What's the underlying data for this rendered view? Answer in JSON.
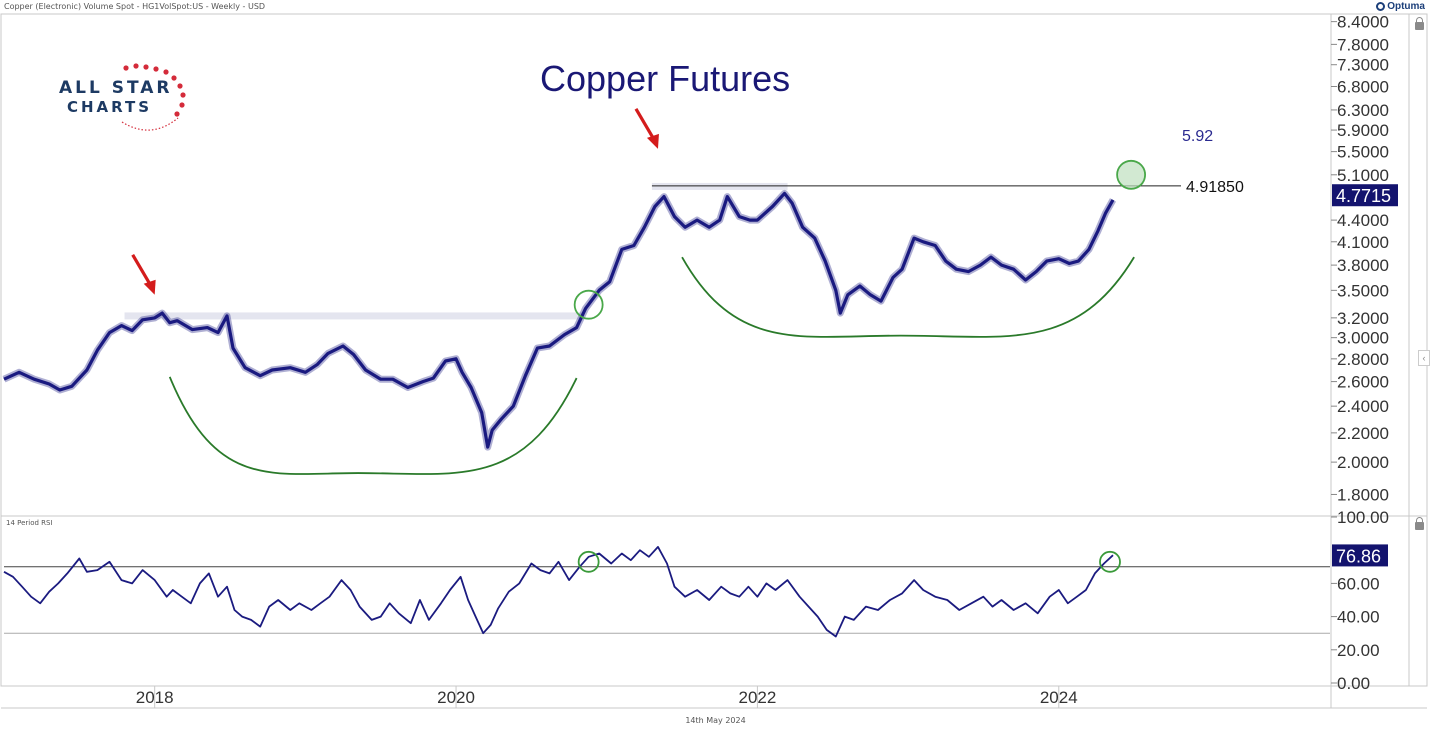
{
  "header": {
    "instrument": "Copper (Electronic) Volume Spot - HG1VolSpot:US - Weekly - USD",
    "vendor": "Optuma"
  },
  "logo": {
    "line1": "ALL STAR",
    "line2": "CHARTS"
  },
  "footer": {
    "date": "14th May 2024"
  },
  "chart_data": [
    {
      "type": "line",
      "title": "Copper Futures",
      "scale": "log",
      "ylim": [
        1.7,
        8.5
      ],
      "xlim": [
        2017.0,
        2025.8
      ],
      "yticks": [
        "8.4000",
        "7.8000",
        "7.3000",
        "6.8000",
        "6.3000",
        "5.9000",
        "5.5000",
        "5.1000",
        "4.4000",
        "4.1000",
        "3.8000",
        "3.5000",
        "3.2000",
        "3.0000",
        "2.8000",
        "2.6000",
        "2.4000",
        "2.2000",
        "2.0000",
        "1.8000"
      ],
      "xticks": [
        "2018",
        "2020",
        "2022",
        "2024"
      ],
      "last_value": "4.7715",
      "resistance": {
        "label": "4.91850",
        "value": 4.9185
      },
      "target_label": "5.92",
      "series": [
        {
          "values": [
            [
              2017.0,
              2.62
            ],
            [
              2017.1,
              2.68
            ],
            [
              2017.2,
              2.62
            ],
            [
              2017.3,
              2.58
            ],
            [
              2017.37,
              2.53
            ],
            [
              2017.45,
              2.56
            ],
            [
              2017.55,
              2.7
            ],
            [
              2017.62,
              2.88
            ],
            [
              2017.7,
              3.05
            ],
            [
              2017.78,
              3.12
            ],
            [
              2017.85,
              3.07
            ],
            [
              2017.92,
              3.18
            ],
            [
              2018.0,
              3.2
            ],
            [
              2018.05,
              3.25
            ],
            [
              2018.1,
              3.15
            ],
            [
              2018.15,
              3.17
            ],
            [
              2018.25,
              3.08
            ],
            [
              2018.35,
              3.1
            ],
            [
              2018.42,
              3.05
            ],
            [
              2018.48,
              3.22
            ],
            [
              2018.52,
              2.9
            ],
            [
              2018.6,
              2.72
            ],
            [
              2018.7,
              2.65
            ],
            [
              2018.78,
              2.7
            ],
            [
              2018.9,
              2.72
            ],
            [
              2019.0,
              2.68
            ],
            [
              2019.08,
              2.75
            ],
            [
              2019.15,
              2.85
            ],
            [
              2019.25,
              2.92
            ],
            [
              2019.32,
              2.84
            ],
            [
              2019.4,
              2.7
            ],
            [
              2019.5,
              2.62
            ],
            [
              2019.58,
              2.62
            ],
            [
              2019.68,
              2.55
            ],
            [
              2019.78,
              2.6
            ],
            [
              2019.85,
              2.63
            ],
            [
              2019.93,
              2.78
            ],
            [
              2020.0,
              2.8
            ],
            [
              2020.04,
              2.68
            ],
            [
              2020.1,
              2.55
            ],
            [
              2020.17,
              2.35
            ],
            [
              2020.21,
              2.1
            ],
            [
              2020.24,
              2.22
            ],
            [
              2020.3,
              2.3
            ],
            [
              2020.38,
              2.4
            ],
            [
              2020.46,
              2.65
            ],
            [
              2020.54,
              2.9
            ],
            [
              2020.62,
              2.92
            ],
            [
              2020.72,
              3.03
            ],
            [
              2020.8,
              3.1
            ],
            [
              2020.86,
              3.3
            ],
            [
              2020.95,
              3.5
            ],
            [
              2021.02,
              3.6
            ],
            [
              2021.1,
              4.0
            ],
            [
              2021.18,
              4.05
            ],
            [
              2021.25,
              4.3
            ],
            [
              2021.32,
              4.6
            ],
            [
              2021.38,
              4.75
            ],
            [
              2021.45,
              4.45
            ],
            [
              2021.52,
              4.3
            ],
            [
              2021.6,
              4.4
            ],
            [
              2021.68,
              4.3
            ],
            [
              2021.75,
              4.4
            ],
            [
              2021.8,
              4.75
            ],
            [
              2021.88,
              4.45
            ],
            [
              2021.95,
              4.4
            ],
            [
              2022.0,
              4.4
            ],
            [
              2022.1,
              4.6
            ],
            [
              2022.18,
              4.8
            ],
            [
              2022.23,
              4.65
            ],
            [
              2022.3,
              4.3
            ],
            [
              2022.38,
              4.15
            ],
            [
              2022.45,
              3.85
            ],
            [
              2022.52,
              3.5
            ],
            [
              2022.55,
              3.25
            ],
            [
              2022.6,
              3.45
            ],
            [
              2022.68,
              3.55
            ],
            [
              2022.75,
              3.45
            ],
            [
              2022.82,
              3.38
            ],
            [
              2022.9,
              3.65
            ],
            [
              2022.96,
              3.75
            ],
            [
              2023.04,
              4.15
            ],
            [
              2023.1,
              4.1
            ],
            [
              2023.18,
              4.05
            ],
            [
              2023.25,
              3.85
            ],
            [
              2023.32,
              3.75
            ],
            [
              2023.4,
              3.72
            ],
            [
              2023.48,
              3.8
            ],
            [
              2023.55,
              3.9
            ],
            [
              2023.62,
              3.8
            ],
            [
              2023.7,
              3.75
            ],
            [
              2023.78,
              3.62
            ],
            [
              2023.85,
              3.72
            ],
            [
              2023.92,
              3.85
            ],
            [
              2024.0,
              3.88
            ],
            [
              2024.07,
              3.82
            ],
            [
              2024.13,
              3.85
            ],
            [
              2024.2,
              4.0
            ],
            [
              2024.26,
              4.25
            ],
            [
              2024.31,
              4.5
            ],
            [
              2024.36,
              4.7
            ]
          ]
        }
      ],
      "annotations": {
        "arrows": [
          [
            2018.0,
            3.45
          ],
          [
            2021.34,
            5.55
          ]
        ],
        "circles": [
          [
            2024.48,
            5.1
          ],
          [
            2020.88,
            3.34
          ]
        ],
        "highlight_zones": [
          {
            "y": 3.22,
            "x": [
              2017.8,
              2020.85
            ]
          },
          {
            "y": 4.91,
            "x": [
              2021.3,
              2022.2
            ]
          }
        ],
        "base_arcs": [
          {
            "from": [
              2018.1,
              2.64
            ],
            "bottom": [
              2019.35,
              1.93
            ],
            "to": [
              2020.8,
              2.63
            ]
          },
          {
            "from": [
              2021.5,
              3.9
            ],
            "bottom": [
              2022.95,
              3.02
            ],
            "to": [
              2024.5,
              3.9
            ]
          }
        ],
        "resistance_from_x": 2021.3
      }
    },
    {
      "type": "line",
      "title": "14 Period RSI",
      "ylim": [
        0,
        100
      ],
      "yticks": [
        "100.00",
        "60.00",
        "40.00",
        "20.00",
        "0.00"
      ],
      "last_value": "76.86",
      "overbought": 70,
      "oversold": 30,
      "series": [
        {
          "values": [
            [
              2017.0,
              67
            ],
            [
              2017.06,
              64
            ],
            [
              2017.12,
              58
            ],
            [
              2017.18,
              52
            ],
            [
              2017.24,
              48
            ],
            [
              2017.3,
              55
            ],
            [
              2017.36,
              60
            ],
            [
              2017.42,
              66
            ],
            [
              2017.5,
              75
            ],
            [
              2017.55,
              67
            ],
            [
              2017.62,
              68
            ],
            [
              2017.7,
              73
            ],
            [
              2017.78,
              62
            ],
            [
              2017.85,
              60
            ],
            [
              2017.92,
              68
            ],
            [
              2018.0,
              62
            ],
            [
              2018.08,
              52
            ],
            [
              2018.12,
              56
            ],
            [
              2018.18,
              52
            ],
            [
              2018.24,
              48
            ],
            [
              2018.3,
              60
            ],
            [
              2018.36,
              66
            ],
            [
              2018.42,
              52
            ],
            [
              2018.48,
              58
            ],
            [
              2018.53,
              44
            ],
            [
              2018.58,
              40
            ],
            [
              2018.64,
              38
            ],
            [
              2018.7,
              34
            ],
            [
              2018.76,
              46
            ],
            [
              2018.82,
              50
            ],
            [
              2018.9,
              44
            ],
            [
              2018.96,
              48
            ],
            [
              2019.04,
              44
            ],
            [
              2019.1,
              48
            ],
            [
              2019.16,
              52
            ],
            [
              2019.24,
              62
            ],
            [
              2019.3,
              56
            ],
            [
              2019.36,
              46
            ],
            [
              2019.44,
              38
            ],
            [
              2019.5,
              40
            ],
            [
              2019.56,
              48
            ],
            [
              2019.62,
              42
            ],
            [
              2019.7,
              36
            ],
            [
              2019.76,
              50
            ],
            [
              2019.82,
              38
            ],
            [
              2019.9,
              48
            ],
            [
              2019.96,
              56
            ],
            [
              2020.03,
              64
            ],
            [
              2020.08,
              50
            ],
            [
              2020.13,
              40
            ],
            [
              2020.18,
              30
            ],
            [
              2020.23,
              35
            ],
            [
              2020.28,
              45
            ],
            [
              2020.35,
              55
            ],
            [
              2020.42,
              60
            ],
            [
              2020.5,
              72
            ],
            [
              2020.56,
              68
            ],
            [
              2020.62,
              66
            ],
            [
              2020.68,
              73
            ],
            [
              2020.75,
              62
            ],
            [
              2020.82,
              70
            ],
            [
              2020.88,
              76
            ],
            [
              2020.95,
              78
            ],
            [
              2021.03,
              72
            ],
            [
              2021.1,
              78
            ],
            [
              2021.16,
              74
            ],
            [
              2021.22,
              80
            ],
            [
              2021.28,
              76
            ],
            [
              2021.34,
              82
            ],
            [
              2021.4,
              72
            ],
            [
              2021.45,
              58
            ],
            [
              2021.52,
              52
            ],
            [
              2021.6,
              56
            ],
            [
              2021.68,
              50
            ],
            [
              2021.76,
              58
            ],
            [
              2021.82,
              54
            ],
            [
              2021.88,
              52
            ],
            [
              2021.94,
              58
            ],
            [
              2022.0,
              52
            ],
            [
              2022.06,
              60
            ],
            [
              2022.12,
              56
            ],
            [
              2022.2,
              62
            ],
            [
              2022.28,
              52
            ],
            [
              2022.34,
              46
            ],
            [
              2022.4,
              40
            ],
            [
              2022.46,
              32
            ],
            [
              2022.52,
              28
            ],
            [
              2022.58,
              40
            ],
            [
              2022.64,
              38
            ],
            [
              2022.72,
              46
            ],
            [
              2022.8,
              44
            ],
            [
              2022.88,
              50
            ],
            [
              2022.96,
              54
            ],
            [
              2023.04,
              62
            ],
            [
              2023.1,
              56
            ],
            [
              2023.18,
              52
            ],
            [
              2023.26,
              50
            ],
            [
              2023.34,
              44
            ],
            [
              2023.42,
              48
            ],
            [
              2023.5,
              52
            ],
            [
              2023.56,
              46
            ],
            [
              2023.62,
              50
            ],
            [
              2023.7,
              44
            ],
            [
              2023.78,
              48
            ],
            [
              2023.86,
              42
            ],
            [
              2023.94,
              52
            ],
            [
              2024.0,
              56
            ],
            [
              2024.06,
              48
            ],
            [
              2024.12,
              52
            ],
            [
              2024.18,
              56
            ],
            [
              2024.24,
              66
            ],
            [
              2024.3,
              72
            ],
            [
              2024.36,
              77
            ]
          ]
        }
      ],
      "annotations": {
        "circles": [
          [
            2020.88,
            73
          ],
          [
            2024.34,
            73
          ]
        ]
      }
    }
  ]
}
